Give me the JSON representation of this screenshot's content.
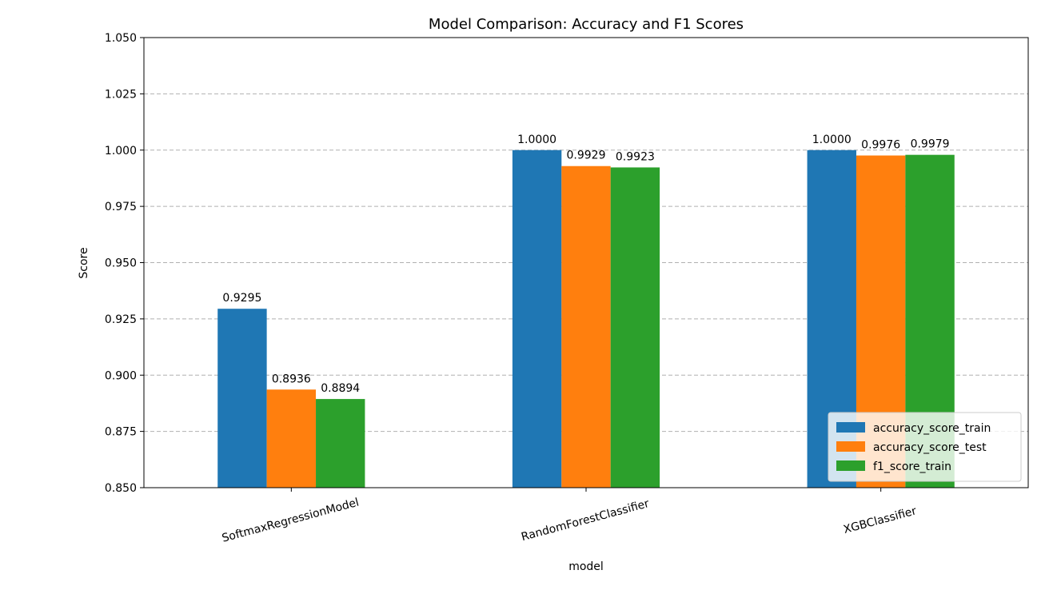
{
  "chart_data": {
    "type": "bar",
    "title": "Model Comparison: Accuracy and F1 Scores",
    "xlabel": "model",
    "ylabel": "Score",
    "categories": [
      "SoftmaxRegressionModel",
      "RandomForestClassifier",
      "XGBClassifier"
    ],
    "series": [
      {
        "name": "accuracy_score_train",
        "values": [
          0.9295,
          1.0,
          1.0
        ],
        "labels": [
          "0.9295",
          "1.0000",
          "1.0000"
        ],
        "color": "#1f77b4"
      },
      {
        "name": "accuracy_score_test",
        "values": [
          0.8936,
          0.9929,
          0.9976
        ],
        "labels": [
          "0.8936",
          "0.9929",
          "0.9976"
        ],
        "color": "#ff7f0e"
      },
      {
        "name": "f1_score_train",
        "values": [
          0.8894,
          0.9923,
          0.9979
        ],
        "labels": [
          "0.8894",
          "0.9923",
          "0.9979"
        ],
        "color": "#2ca02c"
      }
    ],
    "ylim": [
      0.85,
      1.05
    ],
    "yticks": [
      "0.850",
      "0.875",
      "0.900",
      "0.925",
      "0.950",
      "0.975",
      "1.000",
      "1.025",
      "1.050"
    ],
    "ytick_values": [
      0.85,
      0.875,
      0.9,
      0.925,
      0.95,
      0.975,
      1.0,
      1.025,
      1.05
    ],
    "grid": "y-dashed",
    "legend_position": "lower-right",
    "xtick_rotation_deg": 15
  }
}
